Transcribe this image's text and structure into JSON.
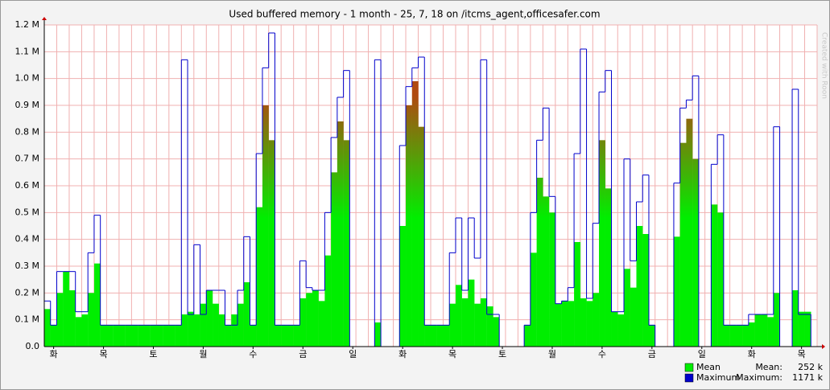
{
  "chart_data": {
    "type": "bar",
    "title": "Used buffered memory - 1 month - 25, 7, 18 on /itcms_agent,officesafer.com",
    "side_text": "Created with Roon",
    "categories": [
      null,
      "화",
      null,
      null,
      null,
      null,
      null,
      null,
      null,
      "목",
      null,
      null,
      null,
      null,
      null,
      null,
      null,
      "토",
      null,
      null,
      null,
      null,
      null,
      null,
      null,
      "월",
      null,
      null,
      null,
      null,
      null,
      null,
      null,
      "수",
      null,
      null,
      null,
      null,
      null,
      null,
      null,
      "금",
      null,
      null,
      null,
      null,
      null,
      null,
      null,
      "일",
      null,
      null,
      null,
      null,
      null,
      null,
      null,
      "화",
      null,
      null,
      null,
      null,
      null,
      null,
      null,
      "목",
      null,
      null,
      null,
      null,
      null,
      null,
      null,
      "토",
      null,
      null,
      null,
      null,
      null,
      null,
      null,
      "월",
      null,
      null,
      null,
      null,
      null,
      null,
      null,
      "수",
      null,
      null,
      null,
      null,
      null,
      null,
      null,
      "금",
      null,
      null,
      null,
      null,
      null,
      null,
      null,
      "일",
      null,
      null,
      null,
      null,
      null,
      null,
      null,
      "화",
      null,
      null,
      null,
      null,
      null,
      null,
      null,
      "목",
      null,
      null
    ],
    "series": [
      {
        "name": "Mean",
        "color": "#00ee00",
        "top_color": "#b04a10",
        "summary": {
          "label": "Mean:",
          "value": "252 k"
        },
        "values": [
          0.14,
          0.08,
          0.2,
          0.28,
          0.21,
          0.11,
          0.12,
          0.2,
          0.31,
          0.08,
          0.08,
          0.08,
          0.08,
          0.08,
          0.08,
          0.08,
          0.08,
          0.08,
          0.08,
          0.08,
          0.08,
          0.08,
          0.12,
          0.13,
          0.12,
          0.16,
          0.21,
          0.16,
          0.12,
          0.08,
          0.12,
          0.16,
          0.24,
          0.08,
          0.52,
          0.9,
          0.77,
          0.08,
          0.08,
          0.08,
          0.08,
          0.18,
          0.2,
          0.21,
          0.17,
          0.34,
          0.65,
          0.84,
          0.77,
          null,
          null,
          null,
          null,
          0.09,
          null,
          null,
          null,
          0.45,
          0.9,
          0.99,
          0.82,
          0.08,
          0.08,
          0.08,
          0.08,
          0.16,
          0.23,
          0.18,
          0.25,
          0.16,
          0.18,
          0.15,
          0.11,
          null,
          null,
          null,
          null,
          0.08,
          0.35,
          0.63,
          0.56,
          0.5,
          0.16,
          0.17,
          0.17,
          0.39,
          0.18,
          0.17,
          0.2,
          0.77,
          0.59,
          0.13,
          0.12,
          0.29,
          0.22,
          0.45,
          0.42,
          0.08,
          null,
          null,
          null,
          0.41,
          0.76,
          0.85,
          0.7,
          null,
          null,
          0.53,
          0.5,
          0.08,
          0.08,
          0.08,
          0.08,
          0.09,
          0.12,
          0.12,
          0.11,
          0.2,
          null,
          null,
          0.21,
          0.13,
          0.13,
          null
        ]
      },
      {
        "name": "Maximum",
        "color": "#0000cc",
        "summary": {
          "label": "Maximum:",
          "value": "1171 k"
        },
        "values": [
          0.17,
          0.08,
          0.28,
          0.28,
          0.28,
          0.13,
          0.13,
          0.35,
          0.49,
          0.08,
          0.08,
          0.08,
          0.08,
          0.08,
          0.08,
          0.08,
          0.08,
          0.08,
          0.08,
          0.08,
          0.08,
          0.08,
          1.07,
          0.12,
          0.38,
          0.12,
          0.21,
          0.21,
          0.21,
          0.08,
          0.08,
          0.21,
          0.41,
          0.08,
          0.72,
          1.04,
          1.17,
          0.08,
          0.08,
          0.08,
          0.08,
          0.32,
          0.22,
          0.21,
          0.21,
          0.5,
          0.78,
          0.93,
          1.03,
          null,
          null,
          null,
          null,
          1.07,
          null,
          null,
          null,
          0.75,
          0.97,
          1.04,
          1.08,
          0.08,
          0.08,
          0.08,
          0.08,
          0.35,
          0.48,
          0.21,
          0.48,
          0.33,
          1.07,
          0.12,
          0.12,
          null,
          null,
          null,
          null,
          0.08,
          0.5,
          0.77,
          0.89,
          0.56,
          0.16,
          0.17,
          0.22,
          0.72,
          1.11,
          0.18,
          0.46,
          0.95,
          1.03,
          0.13,
          0.13,
          0.7,
          0.32,
          0.54,
          0.64,
          0.08,
          null,
          null,
          null,
          0.61,
          0.89,
          0.92,
          1.01,
          null,
          null,
          0.68,
          0.79,
          0.08,
          0.08,
          0.08,
          0.08,
          0.12,
          0.12,
          0.12,
          0.12,
          0.82,
          null,
          null,
          0.96,
          0.12,
          0.12,
          null
        ]
      }
    ],
    "ylim": [
      0,
      1.2
    ],
    "yticks": [
      {
        "value": 0,
        "label": "0.0"
      },
      {
        "value": 0.1,
        "label": "0.1 M"
      },
      {
        "value": 0.2,
        "label": "0.2 M"
      },
      {
        "value": 0.3,
        "label": "0.3 M"
      },
      {
        "value": 0.4,
        "label": "0.4 M"
      },
      {
        "value": 0.5,
        "label": "0.5 M"
      },
      {
        "value": 0.6,
        "label": "0.6 M"
      },
      {
        "value": 0.7,
        "label": "0.7 M"
      },
      {
        "value": 0.8,
        "label": "0.8 M"
      },
      {
        "value": 0.9,
        "label": "0.9 M"
      },
      {
        "value": 1,
        "label": "1.0 M"
      },
      {
        "value": 1.1,
        "label": "1.1 M"
      },
      {
        "value": 1.2,
        "label": "1.2 M"
      }
    ],
    "grid": true,
    "legend": "bottom-right"
  }
}
